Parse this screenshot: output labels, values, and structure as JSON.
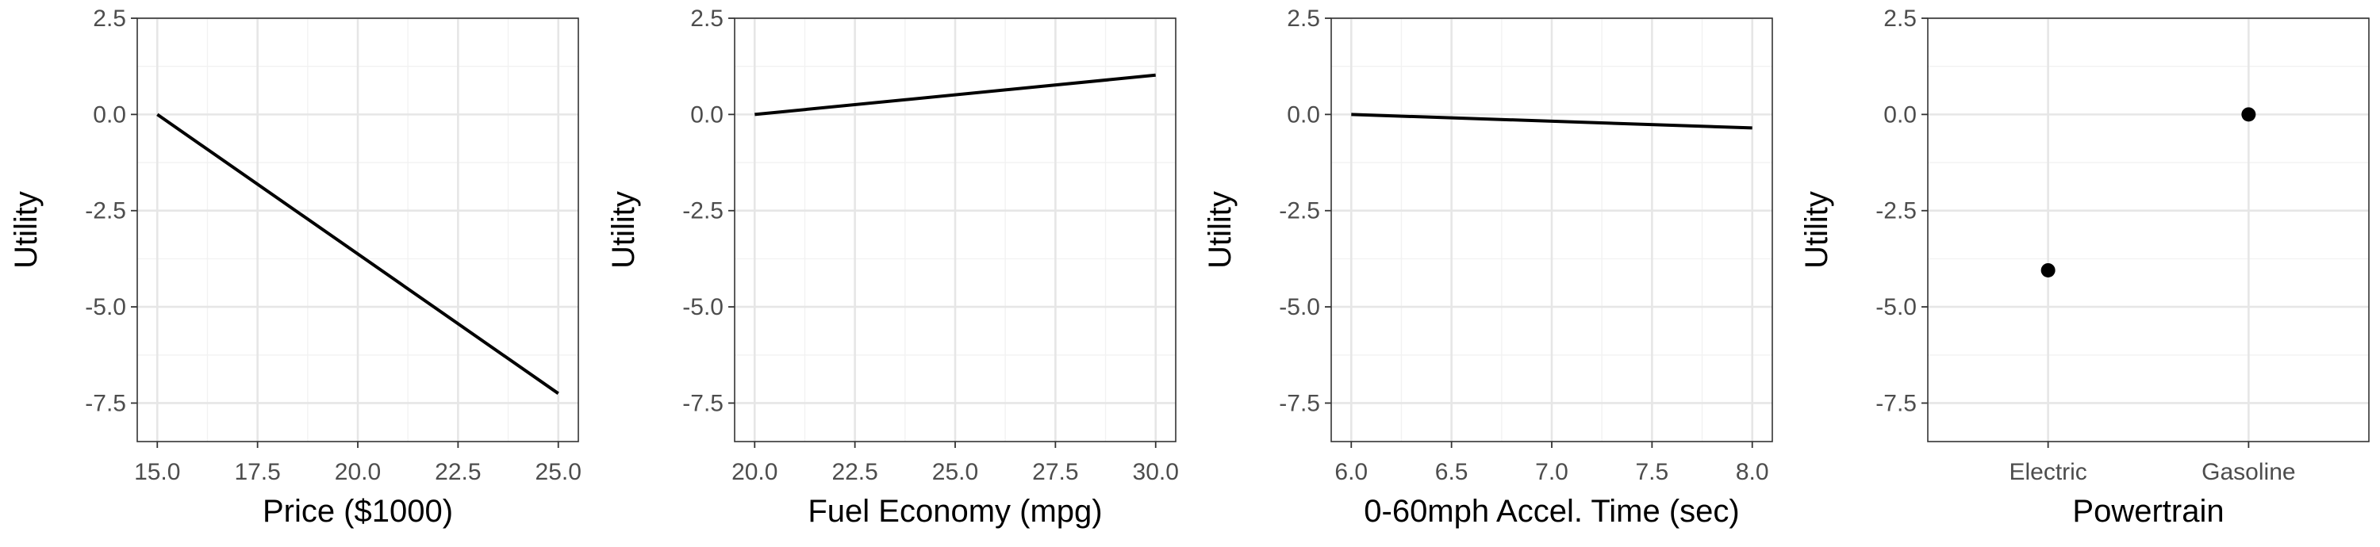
{
  "chart_data": [
    {
      "type": "line",
      "title": "",
      "xlabel": "Price ($1000)",
      "ylabel": "Utility",
      "xlim": [
        14.5,
        25.5
      ],
      "ylim": [
        -8.5,
        2.5
      ],
      "xticks": [
        15.0,
        17.5,
        20.0,
        22.5,
        25.0
      ],
      "xtick_labels": [
        "15.0",
        "17.5",
        "20.0",
        "22.5",
        "25.0"
      ],
      "yticks": [
        2.5,
        0.0,
        -2.5,
        -5.0,
        -7.5
      ],
      "ytick_labels": [
        "2.5",
        "0.0",
        "-2.5",
        "-5.0",
        "-7.5"
      ],
      "grid": true,
      "series": [
        {
          "x": [
            15,
            25
          ],
          "y": [
            0,
            -7.25
          ]
        }
      ]
    },
    {
      "type": "line",
      "title": "",
      "xlabel": "Fuel Economy (mpg)",
      "ylabel": "Utility",
      "xlim": [
        19.5,
        30.5
      ],
      "ylim": [
        -8.5,
        2.5
      ],
      "xticks": [
        20.0,
        22.5,
        25.0,
        27.5,
        30.0
      ],
      "xtick_labels": [
        "20.0",
        "22.5",
        "25.0",
        "27.5",
        "30.0"
      ],
      "yticks": [
        2.5,
        0.0,
        -2.5,
        -5.0,
        -7.5
      ],
      "ytick_labels": [
        "2.5",
        "0.0",
        "-2.5",
        "-5.0",
        "-7.5"
      ],
      "grid": true,
      "series": [
        {
          "x": [
            20,
            30
          ],
          "y": [
            0,
            1.02
          ]
        }
      ]
    },
    {
      "type": "line",
      "title": "",
      "xlabel": "0-60mph Accel. Time (sec)",
      "ylabel": "Utility",
      "xlim": [
        5.9,
        8.1
      ],
      "ylim": [
        -8.5,
        2.5
      ],
      "xticks": [
        6.0,
        6.5,
        7.0,
        7.5,
        8.0
      ],
      "xtick_labels": [
        "6.0",
        "6.5",
        "7.0",
        "7.5",
        "8.0"
      ],
      "yticks": [
        2.5,
        0.0,
        -2.5,
        -5.0,
        -7.5
      ],
      "ytick_labels": [
        "2.5",
        "0.0",
        "-2.5",
        "-5.0",
        "-7.5"
      ],
      "grid": true,
      "series": [
        {
          "x": [
            6,
            8
          ],
          "y": [
            0,
            -0.35
          ]
        }
      ]
    },
    {
      "type": "scatter",
      "title": "",
      "xlabel": "Powertrain",
      "ylabel": "Utility",
      "categories": [
        "Electric",
        "Gasoline"
      ],
      "ylim": [
        -8.5,
        2.5
      ],
      "yticks": [
        2.5,
        0.0,
        -2.5,
        -5.0,
        -7.5
      ],
      "ytick_labels": [
        "2.5",
        "0.0",
        "-2.5",
        "-5.0",
        "-7.5"
      ],
      "grid": true,
      "series": [
        {
          "values": [
            -4.05,
            0.0
          ]
        }
      ]
    }
  ]
}
